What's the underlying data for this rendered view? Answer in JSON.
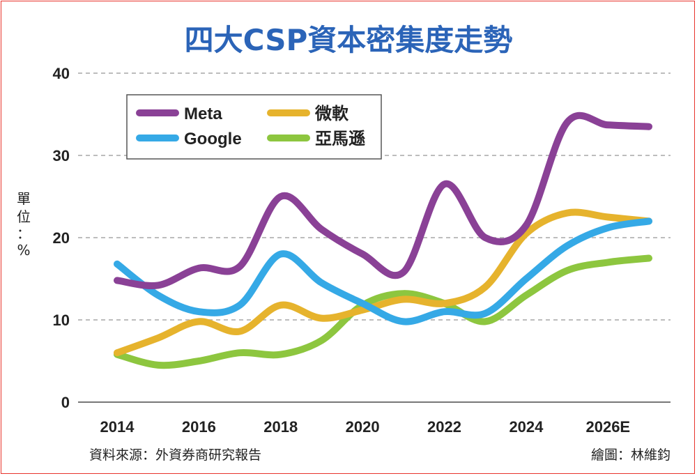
{
  "chart_data": {
    "type": "line",
    "title": "四大CSP資本密集度走勢",
    "ylabel_chars": [
      "單",
      "位",
      "：",
      "%"
    ],
    "ylim": [
      0,
      40
    ],
    "yticks": [
      0,
      10,
      20,
      30,
      40
    ],
    "xlim": [
      2014,
      2027
    ],
    "xticks": [
      {
        "value": 2014,
        "label": "2014"
      },
      {
        "value": 2016,
        "label": "2016"
      },
      {
        "value": 2018,
        "label": "2018"
      },
      {
        "value": 2020,
        "label": "2020"
      },
      {
        "value": 2022,
        "label": "2022"
      },
      {
        "value": 2024,
        "label": "2024"
      },
      {
        "value": 2026,
        "label": "2026E"
      }
    ],
    "grid": true,
    "legend": "top-left",
    "series": [
      {
        "name": "Meta",
        "color": "#8a4196",
        "x": [
          2014,
          2015,
          2016,
          2017,
          2018,
          2019,
          2020,
          2021,
          2022,
          2023,
          2024,
          2025,
          2026,
          2027
        ],
        "y": [
          14.8,
          14.2,
          16.3,
          16.5,
          25.0,
          21.0,
          18.0,
          15.8,
          26.5,
          20.0,
          21.5,
          34.0,
          33.7,
          33.5
        ]
      },
      {
        "name": "微軟",
        "color": "#e6b32d",
        "x": [
          2014,
          2015,
          2016,
          2017,
          2018,
          2019,
          2020,
          2021,
          2022,
          2023,
          2024,
          2025,
          2026,
          2027
        ],
        "y": [
          6.0,
          7.8,
          9.8,
          8.6,
          11.8,
          10.2,
          11.2,
          12.5,
          12.0,
          14.0,
          20.5,
          23.0,
          22.5,
          22.0
        ]
      },
      {
        "name": "Google",
        "color": "#35a9e6",
        "x": [
          2014,
          2015,
          2016,
          2017,
          2018,
          2019,
          2020,
          2021,
          2022,
          2023,
          2024,
          2025,
          2026,
          2027
        ],
        "y": [
          16.8,
          13.0,
          11.0,
          11.8,
          18.0,
          14.5,
          12.0,
          9.8,
          11.0,
          10.8,
          15.0,
          19.0,
          21.2,
          22.0
        ]
      },
      {
        "name": "亞馬遜",
        "color": "#8dc63f",
        "x": [
          2014,
          2015,
          2016,
          2017,
          2018,
          2019,
          2020,
          2021,
          2022,
          2023,
          2024,
          2025,
          2026,
          2027
        ],
        "y": [
          5.8,
          4.5,
          5.0,
          6.0,
          5.8,
          7.5,
          11.8,
          13.2,
          12.0,
          9.8,
          13.0,
          16.0,
          17.0,
          17.5
        ]
      }
    ]
  },
  "legend_entries": [
    {
      "name": "Meta",
      "color": "#8a4196"
    },
    {
      "name": "微軟",
      "color": "#e6b32d"
    },
    {
      "name": "Google",
      "color": "#35a9e6"
    },
    {
      "name": "亞馬遜",
      "color": "#8dc63f"
    }
  ],
  "footer": {
    "source": "資料來源：外資券商研究報告",
    "credit": "繪圖：林維鈞"
  }
}
